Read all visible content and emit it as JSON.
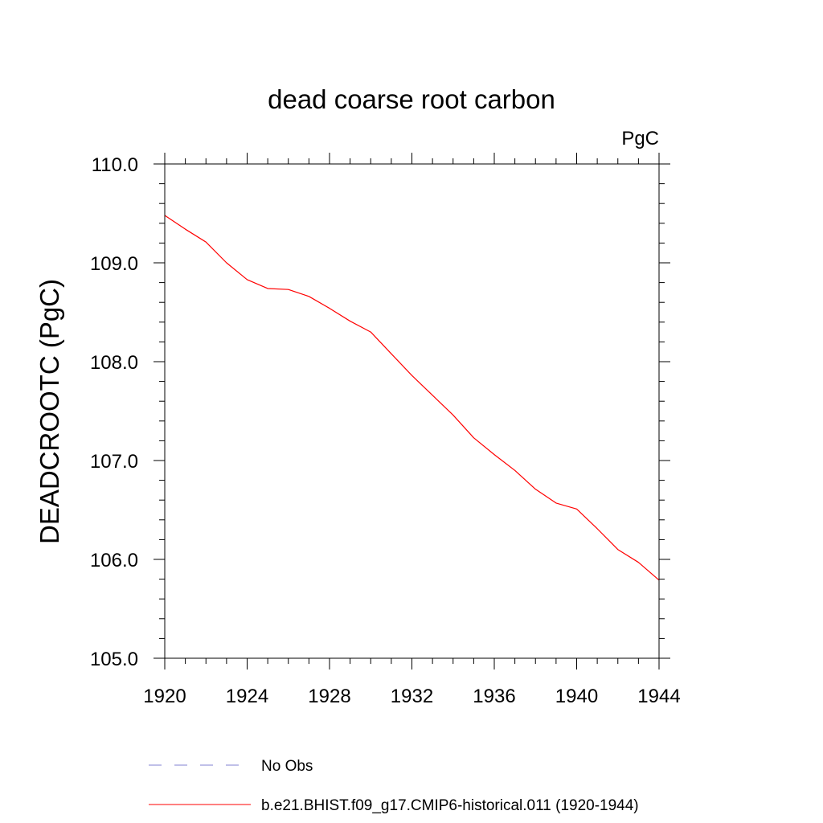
{
  "chart_data": {
    "type": "line",
    "title": "dead coarse root carbon",
    "units": "PgC",
    "xlabel": "",
    "ylabel": "DEADCROOTC  (PgC)",
    "xlim": [
      1920,
      1944
    ],
    "ylim": [
      105.0,
      110.0
    ],
    "x_ticks": [
      1920,
      1924,
      1928,
      1932,
      1936,
      1940,
      1944
    ],
    "x_tick_labels": [
      "1920",
      "1924",
      "1928",
      "1932",
      "1936",
      "1940",
      "1944"
    ],
    "y_ticks": [
      105.0,
      106.0,
      107.0,
      108.0,
      109.0,
      110.0
    ],
    "y_tick_labels": [
      "105.0",
      "106.0",
      "107.0",
      "108.0",
      "109.0",
      "110.0"
    ],
    "x_minor_step": 1,
    "y_minor_step": 0.2,
    "grid": false,
    "legend_position": "bottom",
    "series": [
      {
        "name": "b.e21.BHIST.f09_g17.CMIP6-historical.011 (1920-1944)",
        "color": "#ff0000",
        "style": "solid",
        "x": [
          1920,
          1921,
          1922,
          1923,
          1924,
          1925,
          1926,
          1927,
          1928,
          1929,
          1930,
          1931,
          1932,
          1933,
          1934,
          1935,
          1936,
          1937,
          1938,
          1939,
          1940,
          1941,
          1942,
          1943,
          1944
        ],
        "y": [
          109.48,
          109.34,
          109.21,
          109.0,
          108.83,
          108.74,
          108.73,
          108.66,
          108.54,
          108.41,
          108.3,
          108.08,
          107.86,
          107.66,
          107.46,
          107.23,
          107.06,
          106.9,
          106.71,
          106.57,
          106.51,
          106.31,
          106.1,
          105.97,
          105.79
        ]
      }
    ],
    "legend": [
      {
        "label": "No Obs",
        "color": "#8080d0",
        "style": "dashed"
      },
      {
        "label": "b.e21.BHIST.f09_g17.CMIP6-historical.011 (1920-1944)",
        "color": "#ff0000",
        "style": "solid"
      }
    ]
  }
}
